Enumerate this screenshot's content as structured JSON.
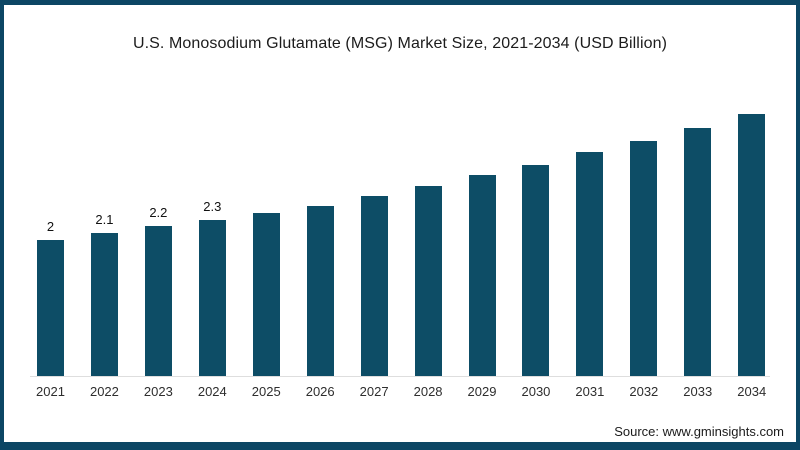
{
  "header": {
    "title": "U.S. Monosodium Glutamate (MSG) Market Size, 2021-2034 (USD Billion)"
  },
  "footer": {
    "source": "Source: www.gminsights.com"
  },
  "colors": {
    "bar": "#0d4d66",
    "frame": "#0c4664",
    "baseline": "#dedede",
    "text": "#1c1c1c"
  },
  "chart_data": {
    "type": "bar",
    "title": "U.S. Monosodium Glutamate (MSG) Market Size, 2021-2034 (USD Billion)",
    "categories": [
      "2021",
      "2022",
      "2023",
      "2024",
      "2025",
      "2026",
      "2027",
      "2028",
      "2029",
      "2030",
      "2031",
      "2032",
      "2033",
      "2034"
    ],
    "values": [
      2,
      2.1,
      2.2,
      2.3,
      2.4,
      2.5,
      2.65,
      2.8,
      2.95,
      3.1,
      3.3,
      3.45,
      3.65,
      3.85
    ],
    "data_labels": [
      "2",
      "2.1",
      "2.2",
      "2.3",
      "",
      "",
      "",
      "",
      "",
      "",
      "",
      "",
      "",
      ""
    ],
    "xlabel": "",
    "ylabel": "",
    "ylim": [
      0,
      4.05
    ],
    "grid": false,
    "legend": false,
    "bar_color": "#0d4d66"
  }
}
